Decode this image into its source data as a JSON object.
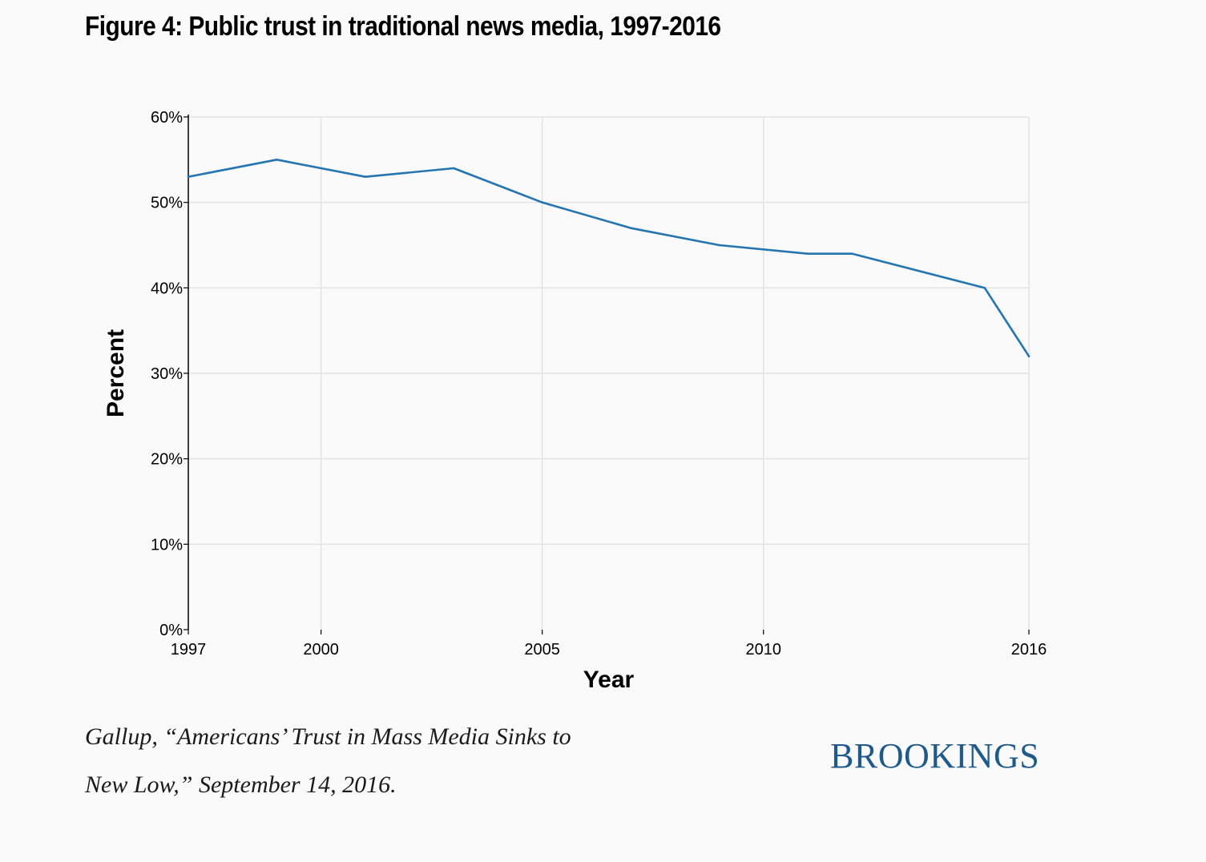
{
  "title": "Figure 4: Public trust in traditional news media, 1997-2016",
  "source_line1": "Gallup, “Americans’ Trust in Mass Media Sinks to",
  "source_line2": "New Low,” September 14, 2016.",
  "brand": "BROOKINGS",
  "colors": {
    "line": "#2475b0",
    "grid": "#e3e3e3",
    "axis": "#000000",
    "brand": "#1f5a8c"
  },
  "chart_data": {
    "type": "line",
    "title": "Figure 4: Public trust in traditional news media, 1997-2016",
    "xlabel": "Year",
    "ylabel": "Percent",
    "xlim": [
      1997,
      2016
    ],
    "ylim": [
      0,
      60
    ],
    "x_ticks": [
      1997,
      2000,
      2005,
      2010,
      2016
    ],
    "y_ticks": [
      0,
      10,
      20,
      30,
      40,
      50,
      60
    ],
    "y_tick_labels": [
      "0%",
      "10%",
      "20%",
      "30%",
      "40%",
      "50%",
      "60%"
    ],
    "x_tick_labels": [
      "1997",
      "2000",
      "2005",
      "2010",
      "2016"
    ],
    "grid": true,
    "legend": "none",
    "series": [
      {
        "x": [
          1997,
          1999,
          2001,
          2003,
          2005,
          2007,
          2009,
          2011,
          2012,
          2015,
          2016
        ],
        "values": [
          53,
          55,
          53,
          54,
          50,
          47,
          45,
          44,
          44,
          40,
          32
        ]
      }
    ]
  }
}
